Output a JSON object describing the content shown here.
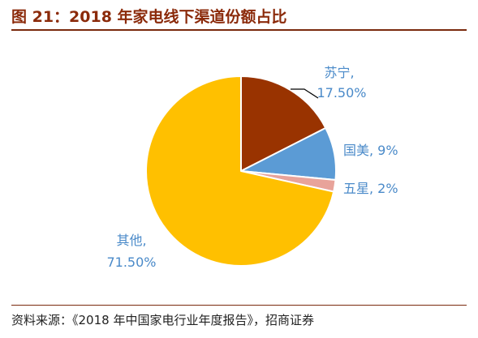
{
  "figure": {
    "title": "图 21：2018 年家电线下渠道份额占比",
    "source": "资料来源：《2018 年中国家电行业年度报告》，招商证券"
  },
  "chart_data": {
    "type": "pie",
    "title": "图 21：2018 年家电线下渠道份额占比",
    "slices": [
      {
        "name": "苏宁",
        "value": 17.5,
        "label_name": "苏宁,",
        "label_value": "17.50%",
        "color": "#993300"
      },
      {
        "name": "国美",
        "value": 9,
        "label": "国美, 9%",
        "color": "#5b9bd5"
      },
      {
        "name": "五星",
        "value": 2,
        "label": "五星, 2%",
        "color": "#e8a39a"
      },
      {
        "name": "其他",
        "value": 71.5,
        "label_name": "其他,",
        "label_value": "71.50%",
        "color": "#ffc000"
      }
    ],
    "label_color": "#4a8ac9"
  }
}
